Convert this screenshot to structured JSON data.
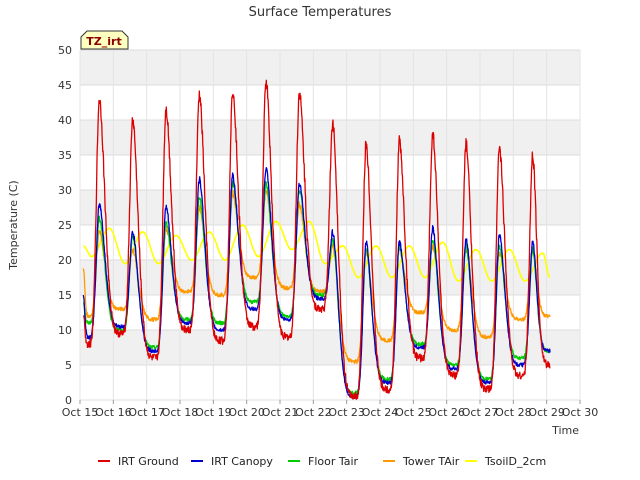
{
  "chart_data": {
    "type": "line",
    "title": "Surface Temperatures",
    "xlabel": "Time",
    "ylabel": "Temperature (C)",
    "annotation": "TZ_irt",
    "ylim": [
      0,
      50
    ],
    "yticks": [
      0,
      5,
      10,
      15,
      20,
      25,
      30,
      35,
      40,
      45,
      50
    ],
    "xlim": [
      15,
      30
    ],
    "xticks": [
      15,
      16,
      17,
      18,
      19,
      20,
      21,
      22,
      23,
      24,
      25,
      26,
      27,
      28,
      29,
      30
    ],
    "xtick_labels": [
      "Oct 15",
      "Oct 16",
      "Oct 17",
      "Oct 18",
      "Oct 19",
      "Oct 20",
      "Oct 21",
      "Oct 22",
      "Oct 23",
      "Oct 24",
      "Oct 25",
      "Oct 26",
      "Oct 27",
      "Oct 28",
      "Oct 29",
      "Oct 30"
    ],
    "grid": true,
    "legend_position": "bottom",
    "days": [
      15,
      16,
      17,
      18,
      19,
      20,
      21,
      22,
      23,
      24,
      25,
      26,
      27,
      28
    ],
    "series": [
      {
        "name": "IRT Ground",
        "color": "#dd0000",
        "start_value": 12,
        "daily_min": [
          8,
          9.5,
          6,
          10,
          8.5,
          10.5,
          9,
          13,
          0.5,
          1.5,
          6,
          3.5,
          1.5,
          3.5
        ],
        "daily_max": [
          43,
          40,
          41.5,
          43.5,
          44.3,
          45.5,
          43.8,
          39.5,
          36.5,
          37,
          38,
          36.5,
          36,
          35
        ],
        "end_value": 5
      },
      {
        "name": "IRT Canopy",
        "color": "#0000cc",
        "start_value": 15,
        "daily_min": [
          9,
          10.5,
          7,
          11,
          10,
          13,
          11.5,
          14.5,
          0.5,
          2.5,
          7.5,
          4.5,
          2.5,
          5
        ],
        "daily_max": [
          28,
          24,
          27.5,
          31.5,
          32,
          33,
          31,
          24,
          22.5,
          22.5,
          24.5,
          23,
          23.5,
          22.5
        ],
        "end_value": 7
      },
      {
        "name": "Floor Tair",
        "color": "#00cc00",
        "start_value": 14,
        "daily_min": [
          11,
          10,
          7.5,
          11.5,
          11,
          14,
          12,
          15,
          1,
          3,
          8,
          5,
          3,
          6
        ],
        "daily_max": [
          26,
          23.5,
          25.5,
          29,
          31,
          31,
          30,
          23,
          21.5,
          22,
          23,
          22,
          22,
          21.5
        ],
        "end_value": 7
      },
      {
        "name": "Tower TAir",
        "color": "#ff9900",
        "start_value": 19,
        "daily_min": [
          12,
          13,
          11.5,
          15.5,
          15,
          17.5,
          16,
          15.5,
          5.5,
          8.5,
          12.5,
          10,
          9,
          11.5
        ],
        "daily_max": [
          24,
          21.5,
          24.5,
          27.5,
          29.5,
          30,
          28,
          22,
          21,
          21.5,
          22,
          21.5,
          21,
          21
        ],
        "end_value": 12
      },
      {
        "name": "TsoilD_2cm",
        "color": "#ffff00",
        "start_value": 22,
        "daily_min": [
          20.5,
          19.5,
          19.5,
          20,
          20,
          20.5,
          21.5,
          19.5,
          17.5,
          17.5,
          17.5,
          17,
          17,
          17
        ],
        "daily_max": [
          24.5,
          24,
          23.5,
          24,
          25,
          25.5,
          25.5,
          22,
          22,
          22,
          22.5,
          21.5,
          21.5,
          21
        ],
        "end_value": 17.5
      }
    ]
  }
}
